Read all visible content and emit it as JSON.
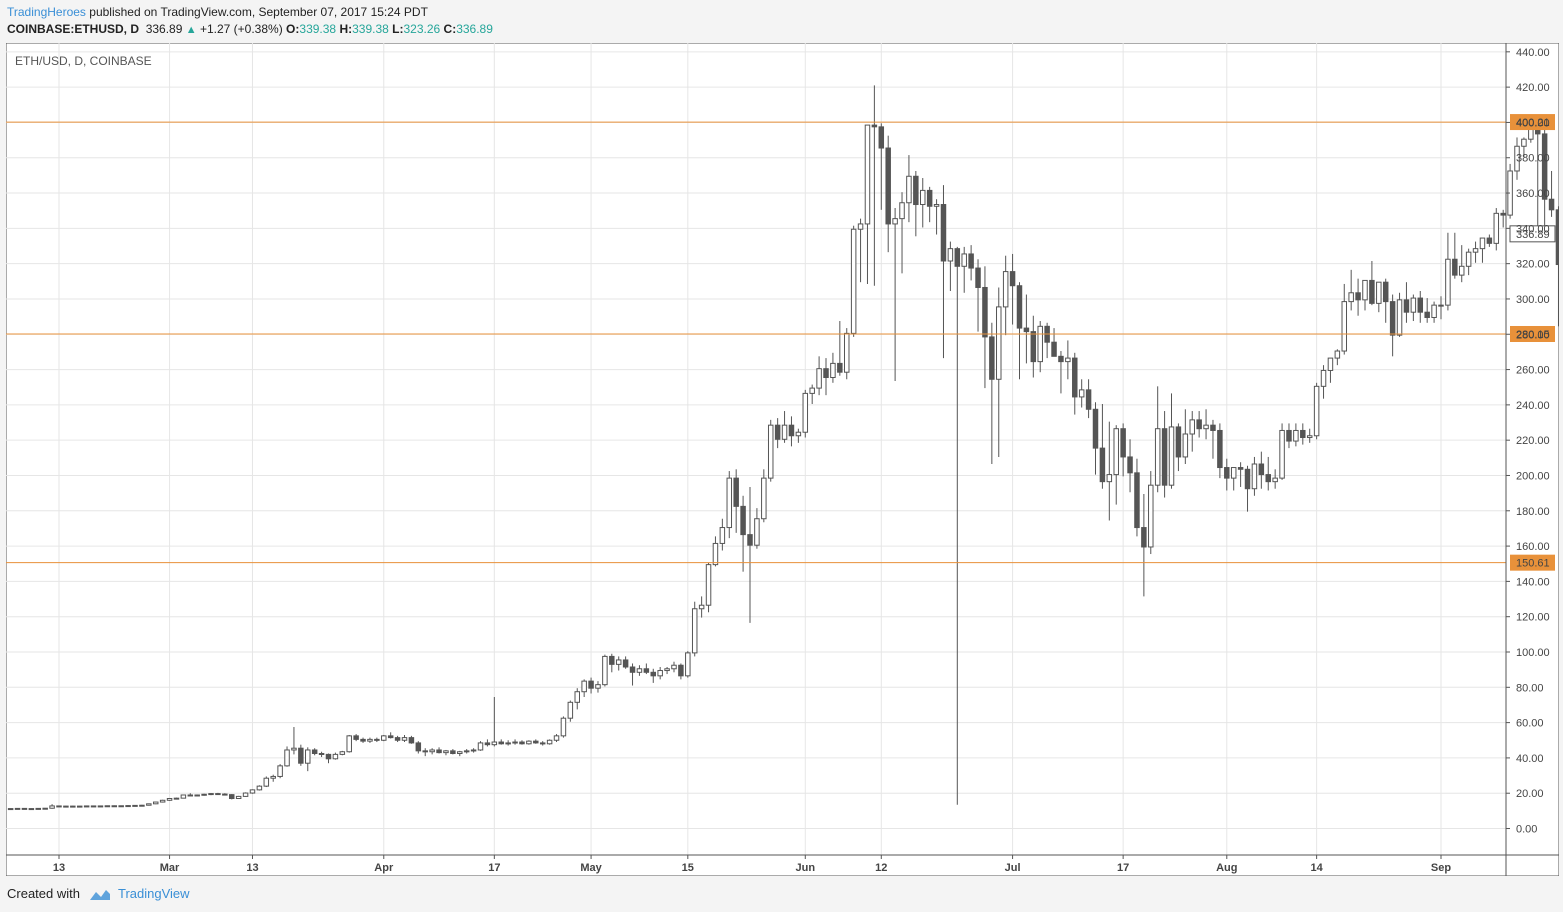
{
  "header": {
    "author": "TradingHeroes",
    "published": " published on TradingView.com, September 07, 2017 15:24 PDT"
  },
  "ohlc": {
    "symbol": "COINBASE:ETHUSD, D",
    "last": "336.89",
    "change": "+1.27 (+0.38%)",
    "o_label": "O:",
    "o": "339.38",
    "h_label": "H:",
    "h": "339.38",
    "l_label": "L:",
    "l": "323.26",
    "c_label": "C:",
    "c": "336.89"
  },
  "footer": {
    "created": "Created with",
    "brand": "TradingView"
  },
  "colors": {
    "level": "#e8913a",
    "candle": "#555555",
    "grid": "#e6e6e6",
    "positive": "#26a69a"
  },
  "chart_data": {
    "type": "candlestick",
    "symbol_label": "ETH/USD, D, COINBASE",
    "ylim": [
      -15,
      445
    ],
    "y_ticks": [
      "0.00",
      "20.00",
      "40.00",
      "60.00",
      "80.00",
      "100.00",
      "120.00",
      "140.00",
      "160.00",
      "180.00",
      "200.00",
      "220.00",
      "240.00",
      "260.00",
      "280.00",
      "300.00",
      "320.00",
      "340.00",
      "360.00",
      "380.00",
      "400.00",
      "420.00",
      "440.00"
    ],
    "x_ticks": [
      "13",
      "Mar",
      "13",
      "Apr",
      "17",
      "May",
      "15",
      "Jun",
      "12",
      "Jul",
      "17",
      "Aug",
      "14",
      "Sep"
    ],
    "start_date": "2017-01-31",
    "horizontal_levels": [
      "400.21",
      "280.15",
      "150.61"
    ],
    "last_price": "336.89",
    "grid": true,
    "candles": [
      [
        10.6,
        10.8,
        10.5,
        10.7
      ],
      [
        10.7,
        10.9,
        10.6,
        10.8
      ],
      [
        10.8,
        11.0,
        10.7,
        10.9
      ],
      [
        10.9,
        11.2,
        10.8,
        11.0
      ],
      [
        11.0,
        11.2,
        10.8,
        11.1
      ],
      [
        11.1,
        11.3,
        10.9,
        11.2
      ],
      [
        11.2,
        11.4,
        11.0,
        11.3
      ],
      [
        11.3,
        11.5,
        11.1,
        11.4
      ],
      [
        11.4,
        11.6,
        11.1,
        11.2
      ],
      [
        11.2,
        11.4,
        11.0,
        11.3
      ],
      [
        11.3,
        11.5,
        11.1,
        11.4
      ],
      [
        11.4,
        11.6,
        11.2,
        11.5
      ],
      [
        11.5,
        13.8,
        11.2,
        12.8
      ],
      [
        12.8,
        13.0,
        12.3,
        12.6
      ],
      [
        12.6,
        12.9,
        12.4,
        12.7
      ],
      [
        12.7,
        12.9,
        12.4,
        12.6
      ],
      [
        12.6,
        12.8,
        12.4,
        12.7
      ],
      [
        12.7,
        12.9,
        12.5,
        12.8
      ],
      [
        12.8,
        13.0,
        12.5,
        12.7
      ],
      [
        12.7,
        12.9,
        12.5,
        12.8
      ],
      [
        12.8,
        13.0,
        12.6,
        12.9
      ],
      [
        12.9,
        13.1,
        12.6,
        12.8
      ],
      [
        12.8,
        13.0,
        12.6,
        12.9
      ],
      [
        12.9,
        13.2,
        12.7,
        13.0
      ],
      [
        13.0,
        13.3,
        12.8,
        13.1
      ],
      [
        13.1,
        13.4,
        12.9,
        13.2
      ],
      [
        13.2,
        14.2,
        13.0,
        14.0
      ],
      [
        14.0,
        15.2,
        13.8,
        15.0
      ],
      [
        15.0,
        16.3,
        14.7,
        16.0
      ],
      [
        16.0,
        17.2,
        15.7,
        17.0
      ],
      [
        17.0,
        17.5,
        16.6,
        17.2
      ],
      [
        17.2,
        19.2,
        17.0,
        19.0
      ],
      [
        19.0,
        20.0,
        18.3,
        18.7
      ],
      [
        18.7,
        19.3,
        18.2,
        19.0
      ],
      [
        19.0,
        19.7,
        18.6,
        19.4
      ],
      [
        19.4,
        20.1,
        18.9,
        19.8
      ],
      [
        19.8,
        20.2,
        19.1,
        19.5
      ],
      [
        19.5,
        20.0,
        18.8,
        19.2
      ],
      [
        19.2,
        19.5,
        16.5,
        17.0
      ],
      [
        17.0,
        18.5,
        16.8,
        18.2
      ],
      [
        18.2,
        20.5,
        18.0,
        20.1
      ],
      [
        20.1,
        22.2,
        19.7,
        21.9
      ],
      [
        21.9,
        24.5,
        21.5,
        24.0
      ],
      [
        24.0,
        29.5,
        23.5,
        28.5
      ],
      [
        28.5,
        30.5,
        26.5,
        29.5
      ],
      [
        29.5,
        36.5,
        28.5,
        35.5
      ],
      [
        35.5,
        46.5,
        35.0,
        44.5
      ],
      [
        44.5,
        57.5,
        42.0,
        45.5
      ],
      [
        45.5,
        47.5,
        35.5,
        37.0
      ],
      [
        37.0,
        46.0,
        32.5,
        44.5
      ],
      [
        44.5,
        45.5,
        41.5,
        42.5
      ],
      [
        42.5,
        43.5,
        40.5,
        42.0
      ],
      [
        42.0,
        42.5,
        37.0,
        39.5
      ],
      [
        39.5,
        43.0,
        39.0,
        42.0
      ],
      [
        42.0,
        44.0,
        41.5,
        43.5
      ],
      [
        43.5,
        53.0,
        43.0,
        52.5
      ],
      [
        52.5,
        53.5,
        49.5,
        50.5
      ],
      [
        50.5,
        51.5,
        48.5,
        49.5
      ],
      [
        49.5,
        51.5,
        48.5,
        50.5
      ],
      [
        50.5,
        51.5,
        49.0,
        50.0
      ],
      [
        50.0,
        53.0,
        49.5,
        52.5
      ],
      [
        52.5,
        54.5,
        51.0,
        51.5
      ],
      [
        51.5,
        52.5,
        49.0,
        50.0
      ],
      [
        50.0,
        53.0,
        49.0,
        51.5
      ],
      [
        51.5,
        52.5,
        48.0,
        48.5
      ],
      [
        48.5,
        49.5,
        42.5,
        44.0
      ],
      [
        44.0,
        45.5,
        41.0,
        43.5
      ],
      [
        43.5,
        45.5,
        42.0,
        44.5
      ],
      [
        44.5,
        46.0,
        42.5,
        43.0
      ],
      [
        43.0,
        44.5,
        41.5,
        44.0
      ],
      [
        44.0,
        45.0,
        42.0,
        42.5
      ],
      [
        42.5,
        44.0,
        41.0,
        43.5
      ],
      [
        43.5,
        45.0,
        42.5,
        44.0
      ],
      [
        44.0,
        45.5,
        43.0,
        44.5
      ],
      [
        44.5,
        49.5,
        44.0,
        48.5
      ],
      [
        48.5,
        50.5,
        46.5,
        47.5
      ],
      [
        47.5,
        74.5,
        46.5,
        49.0
      ],
      [
        49.0,
        50.5,
        47.5,
        48.0
      ],
      [
        48.0,
        50.0,
        47.0,
        48.5
      ],
      [
        48.5,
        50.5,
        47.5,
        49.0
      ],
      [
        49.0,
        50.0,
        47.5,
        48.0
      ],
      [
        48.0,
        50.0,
        47.5,
        49.5
      ],
      [
        49.5,
        50.5,
        48.0,
        48.5
      ],
      [
        48.5,
        49.5,
        47.0,
        48.0
      ],
      [
        48.0,
        50.5,
        47.5,
        50.0
      ],
      [
        50.0,
        53.5,
        49.0,
        52.5
      ],
      [
        52.5,
        63.5,
        51.5,
        62.5
      ],
      [
        62.5,
        72.5,
        60.5,
        71.5
      ],
      [
        71.5,
        79.5,
        67.5,
        77.5
      ],
      [
        77.5,
        84.5,
        74.5,
        83.5
      ],
      [
        83.5,
        85.5,
        76.5,
        79.5
      ],
      [
        79.5,
        83.5,
        77.0,
        81.5
      ],
      [
        81.5,
        98.5,
        80.5,
        97.5
      ],
      [
        97.5,
        99.0,
        88.5,
        93.0
      ],
      [
        93.0,
        97.5,
        89.5,
        95.5
      ],
      [
        95.5,
        97.5,
        90.5,
        91.5
      ],
      [
        91.5,
        93.5,
        81.0,
        88.5
      ],
      [
        88.5,
        92.5,
        86.5,
        90.5
      ],
      [
        90.5,
        93.5,
        87.5,
        88.5
      ],
      [
        88.5,
        90.5,
        82.5,
        86.5
      ],
      [
        86.5,
        91.5,
        84.5,
        89.5
      ],
      [
        89.5,
        91.5,
        87.5,
        90.5
      ],
      [
        90.5,
        94.5,
        88.5,
        92.5
      ],
      [
        92.5,
        93.5,
        84.5,
        86.5
      ],
      [
        86.5,
        100.5,
        85.5,
        99.5
      ],
      [
        99.5,
        128.5,
        97.5,
        124.5
      ],
      [
        124.5,
        131.5,
        119.5,
        126.5
      ],
      [
        126.5,
        150.5,
        122.5,
        149.5
      ],
      [
        149.5,
        165.5,
        148.5,
        161.5
      ],
      [
        161.5,
        175.5,
        157.5,
        170.5
      ],
      [
        170.5,
        202.5,
        164.5,
        198.5
      ],
      [
        198.5,
        203.5,
        167.5,
        182.5
      ],
      [
        182.5,
        188.5,
        145.5,
        166.5
      ],
      [
        166.5,
        193.5,
        116.5,
        160.5
      ],
      [
        160.5,
        181.5,
        158.5,
        175.5
      ],
      [
        175.5,
        203.5,
        173.5,
        198.5
      ],
      [
        198.5,
        231.5,
        196.5,
        228.5
      ],
      [
        228.5,
        232.5,
        215.5,
        220.5
      ],
      [
        220.5,
        236.5,
        218.5,
        228.5
      ],
      [
        228.5,
        233.5,
        216.5,
        222.5
      ],
      [
        222.5,
        226.5,
        218.5,
        224.5
      ],
      [
        224.5,
        248.5,
        221.5,
        246.5
      ],
      [
        246.5,
        251.5,
        240.5,
        249.5
      ],
      [
        249.5,
        267.5,
        245.5,
        260.5
      ],
      [
        260.5,
        266.5,
        245.5,
        255.5
      ],
      [
        255.5,
        269.5,
        252.5,
        263.5
      ],
      [
        263.5,
        287.5,
        256.5,
        258.5
      ],
      [
        258.5,
        283.5,
        254.5,
        280.5
      ],
      [
        280.5,
        341.5,
        278.5,
        339.5
      ],
      [
        339.5,
        345.5,
        309.5,
        342.5
      ],
      [
        342.5,
        398.5,
        308.5,
        398.5
      ],
      [
        398.5,
        421.0,
        307.5,
        397.5
      ],
      [
        397.5,
        399.5,
        350.5,
        385.5
      ],
      [
        385.5,
        392.5,
        326.5,
        342.5
      ],
      [
        342.5,
        351.5,
        253.5,
        345.5
      ],
      [
        345.5,
        360.5,
        314.5,
        354.5
      ],
      [
        354.5,
        381.5,
        343.5,
        369.5
      ],
      [
        369.5,
        372.5,
        335.5,
        353.5
      ],
      [
        353.5,
        368.5,
        340.5,
        361.5
      ],
      [
        361.5,
        363.5,
        343.5,
        352.5
      ],
      [
        352.5,
        356.5,
        336.5,
        353.5
      ],
      [
        353.5,
        364.5,
        266.5,
        321.5
      ],
      [
        321.5,
        332.5,
        304.5,
        328.5
      ],
      [
        328.5,
        329.5,
        13.5,
        318.5
      ],
      [
        318.5,
        329.5,
        303.5,
        325.5
      ],
      [
        325.5,
        330.5,
        310.5,
        317.5
      ],
      [
        317.5,
        322.5,
        281.5,
        306.5
      ],
      [
        306.5,
        318.5,
        249.5,
        278.5
      ],
      [
        278.5,
        286.5,
        206.5,
        254.5
      ],
      [
        254.5,
        306.5,
        210.5,
        295.5
      ],
      [
        295.5,
        324.5,
        279.5,
        315.5
      ],
      [
        315.5,
        325.5,
        285.5,
        307.5
      ],
      [
        307.5,
        309.5,
        254.5,
        283.5
      ],
      [
        283.5,
        302.5,
        263.5,
        281.5
      ],
      [
        281.5,
        290.5,
        255.5,
        264.5
      ],
      [
        264.5,
        287.5,
        258.5,
        284.5
      ],
      [
        284.5,
        286.5,
        266.5,
        275.5
      ],
      [
        275.5,
        283.5,
        269.5,
        267.5
      ],
      [
        267.5,
        270.5,
        246.5,
        264.5
      ],
      [
        264.5,
        276.5,
        254.5,
        266.5
      ],
      [
        266.5,
        269.5,
        234.5,
        244.5
      ],
      [
        244.5,
        254.5,
        238.5,
        248.5
      ],
      [
        248.5,
        254.5,
        232.5,
        237.5
      ],
      [
        237.5,
        241.5,
        200.5,
        215.5
      ],
      [
        215.5,
        240.5,
        192.5,
        196.5
      ],
      [
        196.5,
        230.5,
        174.5,
        200.5
      ],
      [
        200.5,
        228.5,
        183.5,
        226.5
      ],
      [
        226.5,
        229.5,
        199.5,
        210.5
      ],
      [
        210.5,
        220.5,
        190.5,
        201.5
      ],
      [
        201.5,
        209.5,
        165.5,
        170.5
      ],
      [
        170.5,
        189.5,
        131.5,
        159.5
      ],
      [
        159.5,
        202.5,
        155.5,
        194.5
      ],
      [
        194.5,
        250.5,
        190.5,
        226.5
      ],
      [
        226.5,
        236.5,
        187.5,
        194.5
      ],
      [
        194.5,
        246.5,
        192.5,
        227.5
      ],
      [
        227.5,
        229.5,
        202.5,
        210.5
      ],
      [
        210.5,
        237.5,
        206.5,
        223.5
      ],
      [
        223.5,
        236.5,
        213.5,
        231.5
      ],
      [
        231.5,
        236.5,
        221.5,
        226.5
      ],
      [
        226.5,
        237.5,
        220.5,
        228.5
      ],
      [
        228.5,
        231.5,
        209.5,
        225.5
      ],
      [
        225.5,
        229.5,
        198.5,
        204.5
      ],
      [
        204.5,
        209.5,
        191.5,
        198.5
      ],
      [
        198.5,
        203.5,
        191.5,
        204.5
      ],
      [
        204.5,
        207.5,
        193.5,
        203.5
      ],
      [
        203.5,
        205.5,
        179.5,
        192.5
      ],
      [
        192.5,
        210.5,
        188.5,
        206.5
      ],
      [
        206.5,
        213.5,
        192.5,
        200.5
      ],
      [
        200.5,
        210.5,
        191.5,
        196.5
      ],
      [
        196.5,
        203.5,
        192.5,
        198.5
      ],
      [
        198.5,
        229.5,
        197.5,
        225.5
      ],
      [
        225.5,
        229.5,
        215.5,
        219.5
      ],
      [
        219.5,
        229.5,
        216.5,
        225.5
      ],
      [
        225.5,
        229.5,
        217.5,
        221.5
      ],
      [
        221.5,
        226.5,
        218.5,
        222.5
      ],
      [
        222.5,
        252.5,
        220.5,
        250.5
      ],
      [
        250.5,
        262.5,
        243.5,
        259.5
      ],
      [
        259.5,
        266.5,
        252.5,
        266.5
      ],
      [
        266.5,
        271.5,
        262.5,
        270.5
      ],
      [
        270.5,
        308.5,
        268.5,
        298.5
      ],
      [
        298.5,
        316.5,
        293.5,
        303.5
      ],
      [
        303.5,
        311.5,
        290.5,
        299.5
      ],
      [
        299.5,
        310.5,
        293.5,
        310.5
      ],
      [
        310.5,
        321.5,
        296.5,
        297.5
      ],
      [
        297.5,
        308.5,
        292.5,
        309.5
      ],
      [
        309.5,
        311.5,
        286.5,
        298.5
      ],
      [
        298.5,
        302.5,
        267.5,
        279.5
      ],
      [
        279.5,
        303.5,
        278.5,
        299.5
      ],
      [
        299.5,
        309.5,
        286.5,
        292.5
      ],
      [
        292.5,
        302.5,
        287.5,
        300.5
      ],
      [
        300.5,
        304.5,
        286.5,
        292.5
      ],
      [
        292.5,
        300.5,
        286.5,
        289.5
      ],
      [
        289.5,
        298.5,
        286.5,
        296.5
      ],
      [
        296.5,
        301.5,
        288.5,
        296.5
      ],
      [
        296.5,
        337.5,
        293.5,
        322.5
      ],
      [
        322.5,
        337.5,
        311.5,
        313.5
      ],
      [
        313.5,
        330.5,
        309.5,
        318.5
      ],
      [
        318.5,
        328.5,
        313.5,
        326.5
      ],
      [
        326.5,
        332.5,
        320.5,
        328.5
      ],
      [
        328.5,
        334.5,
        320.5,
        334.5
      ],
      [
        334.5,
        336.5,
        329.5,
        331.5
      ],
      [
        331.5,
        351.5,
        327.5,
        348.5
      ],
      [
        348.5,
        350.5,
        340.5,
        347.5
      ],
      [
        347.5,
        376.5,
        345.5,
        372.5
      ],
      [
        372.5,
        391.5,
        367.5,
        386.5
      ],
      [
        386.5,
        391.5,
        380.5,
        390.5
      ],
      [
        390.5,
        395.5,
        388.5,
        396.5
      ],
      [
        396.5,
        398.5,
        340.5,
        393.5
      ],
      [
        393.5,
        396.5,
        332.5,
        356.5
      ],
      [
        356.5,
        372.5,
        346.5,
        350.5
      ],
      [
        350.5,
        352.5,
        284.5,
        319.5
      ],
      [
        319.5,
        333.5,
        289.5,
        323.5
      ],
      [
        323.5,
        336.5,
        317.5,
        336.5
      ],
      [
        339.4,
        339.4,
        323.3,
        336.9
      ]
    ]
  }
}
